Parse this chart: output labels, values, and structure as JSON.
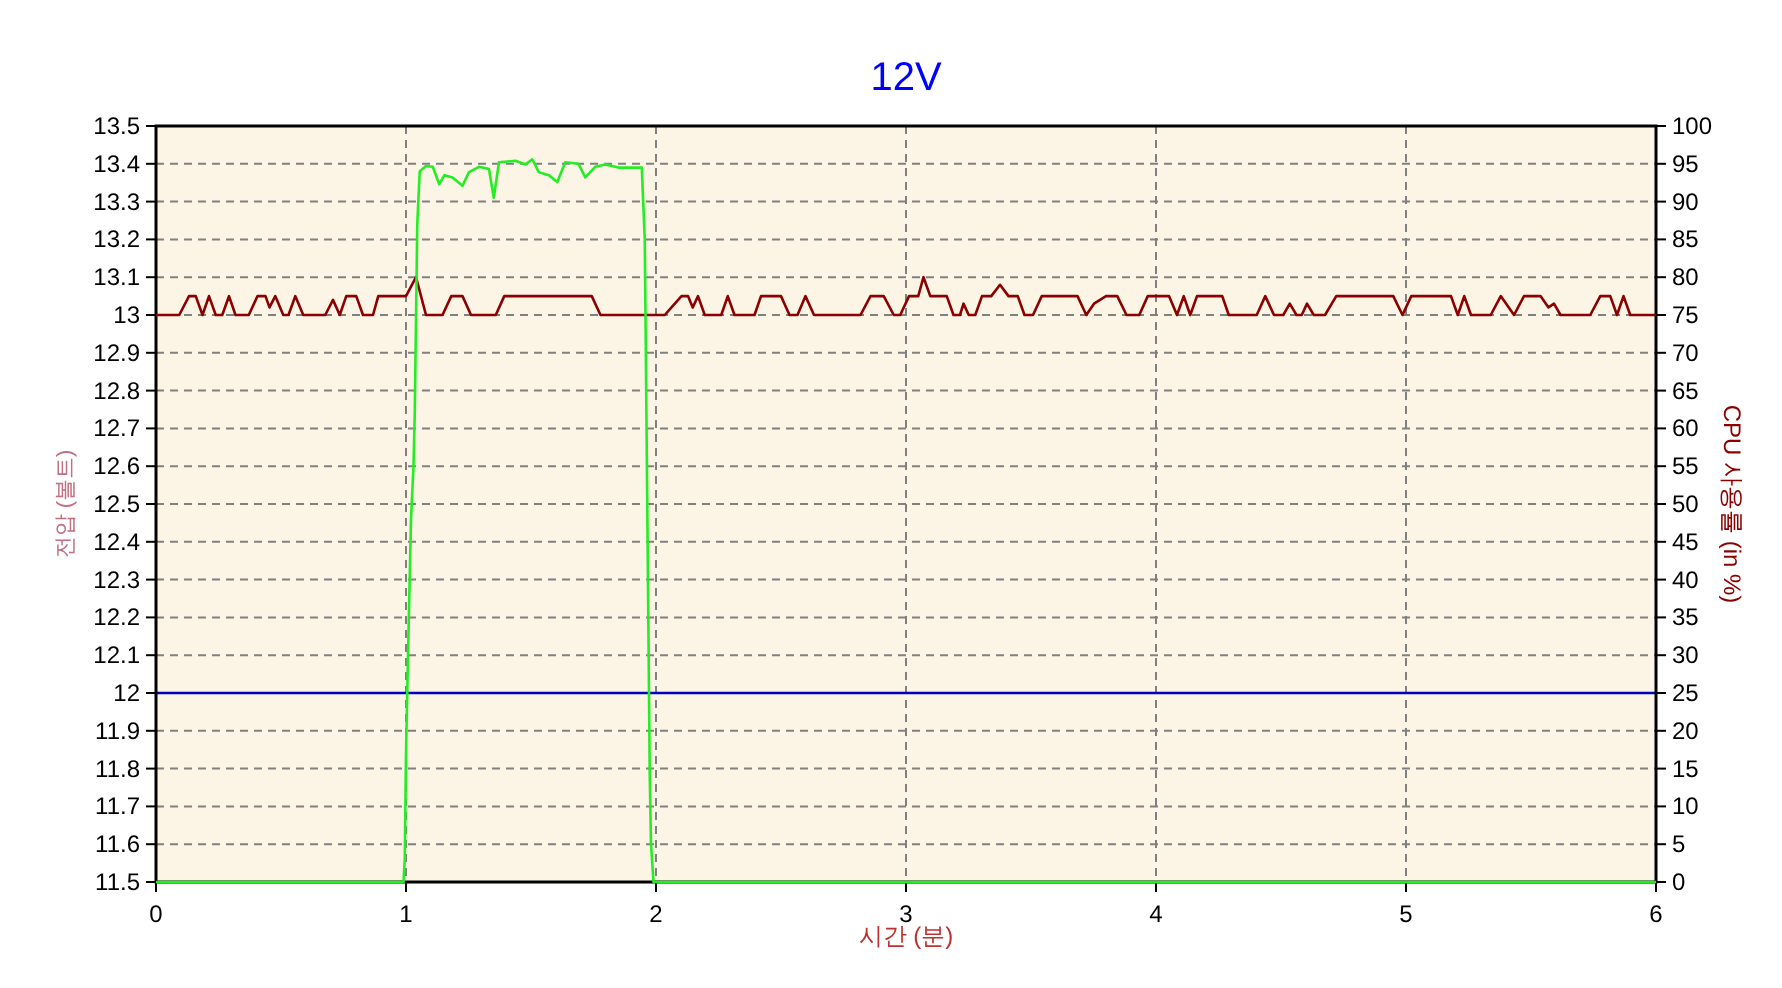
{
  "chart_data": {
    "type": "line",
    "title": "12V",
    "xlabel": "시간 (분)",
    "ylabel": "전압 (볼트)",
    "y2label": "CPU 사용률 (in %)",
    "xlim": [
      0,
      6
    ],
    "xticks": [
      0,
      1,
      2,
      3,
      4,
      5,
      6
    ],
    "ylim": [
      11.5,
      13.5
    ],
    "yticks": [
      11.5,
      11.6,
      11.7,
      11.8,
      11.9,
      12,
      12.1,
      12.2,
      12.3,
      12.4,
      12.5,
      12.6,
      12.7,
      12.8,
      12.9,
      13,
      13.1,
      13.2,
      13.3,
      13.4,
      13.5
    ],
    "y2lim": [
      0,
      100
    ],
    "y2ticks": [
      0,
      5,
      10,
      15,
      20,
      25,
      30,
      35,
      40,
      45,
      50,
      55,
      60,
      65,
      70,
      75,
      80,
      85,
      90,
      95,
      100
    ],
    "grid": true,
    "ref_lines": [
      {
        "axis": "y",
        "value": 12,
        "color": "#0000c0"
      }
    ],
    "series": [
      {
        "color": "#8b0000",
        "x": [
          0,
          0.093,
          0.132,
          0.159,
          0.186,
          0.212,
          0.239,
          0.265,
          0.292,
          0.318,
          0.371,
          0.406,
          0.438,
          0.454,
          0.477,
          0.509,
          0.53,
          0.557,
          0.589,
          0.677,
          0.708,
          0.735,
          0.761,
          0.801,
          0.828,
          0.868,
          0.889,
          1.0,
          1.04,
          1.08,
          1.146,
          1.181,
          1.226,
          1.26,
          1.359,
          1.393,
          1.743,
          1.778,
          2.035,
          2.062,
          2.102,
          2.128,
          2.147,
          2.168,
          2.195,
          2.261,
          2.287,
          2.314,
          2.394,
          2.42,
          2.5,
          2.534,
          2.566,
          2.598,
          2.632,
          2.818,
          2.858,
          2.911,
          2.951,
          2.977,
          3.012,
          3.049,
          3.07,
          3.097,
          3.163,
          3.19,
          3.216,
          3.23,
          3.251,
          3.277,
          3.304,
          3.341,
          3.376,
          3.41,
          3.447,
          3.474,
          3.508,
          3.543,
          3.686,
          3.721,
          3.752,
          3.8,
          3.845,
          3.882,
          3.933,
          3.967,
          4.052,
          4.084,
          4.111,
          4.137,
          4.164,
          4.265,
          4.291,
          4.403,
          4.437,
          4.472,
          4.509,
          4.535,
          4.562,
          4.583,
          4.604,
          4.631,
          4.676,
          4.721,
          4.949,
          4.986,
          5.021,
          5.18,
          5.207,
          5.233,
          5.26,
          5.339,
          5.379,
          5.432,
          5.472,
          5.538,
          5.57,
          5.592,
          5.618,
          5.737,
          5.777,
          5.817,
          5.844,
          5.87,
          5.897,
          6
        ],
        "values": [
          13.0,
          13.0,
          13.05,
          13.05,
          13.0,
          13.05,
          13.0,
          13.0,
          13.05,
          13.0,
          13.0,
          13.05,
          13.05,
          13.02,
          13.05,
          13.0,
          13.0,
          13.05,
          13.0,
          13.0,
          13.04,
          13.0,
          13.05,
          13.05,
          13.0,
          13.0,
          13.05,
          13.05,
          13.1,
          13.0,
          13.0,
          13.05,
          13.05,
          13.0,
          13.0,
          13.05,
          13.05,
          13.0,
          13.0,
          13.02,
          13.05,
          13.05,
          13.02,
          13.05,
          13.0,
          13.0,
          13.05,
          13.0,
          13.0,
          13.05,
          13.05,
          13.0,
          13.0,
          13.05,
          13.0,
          13.0,
          13.05,
          13.05,
          13.0,
          13.0,
          13.05,
          13.05,
          13.1,
          13.05,
          13.05,
          13.0,
          13.0,
          13.03,
          13.0,
          13.0,
          13.05,
          13.05,
          13.08,
          13.05,
          13.05,
          13.0,
          13.0,
          13.05,
          13.05,
          13.0,
          13.03,
          13.05,
          13.05,
          13.0,
          13.0,
          13.05,
          13.05,
          13.0,
          13.05,
          13.0,
          13.05,
          13.05,
          13.0,
          13.0,
          13.05,
          13.0,
          13.0,
          13.03,
          13.0,
          13.0,
          13.03,
          13.0,
          13.0,
          13.05,
          13.05,
          13.0,
          13.05,
          13.05,
          13.0,
          13.05,
          13.0,
          13.0,
          13.05,
          13.0,
          13.05,
          13.05,
          13.02,
          13.03,
          13.0,
          13.0,
          13.05,
          13.05,
          13.0,
          13.05,
          13.0,
          13.0
        ]
      },
      {
        "color": "#22ee22",
        "axis": "y2",
        "x": [
          0,
          0.99,
          0.995,
          1.0,
          1.01,
          1.02,
          1.03,
          1.035,
          1.045,
          1.055,
          1.08,
          1.107,
          1.133,
          1.154,
          1.186,
          1.226,
          1.252,
          1.292,
          1.332,
          1.351,
          1.372,
          1.438,
          1.478,
          1.505,
          1.531,
          1.571,
          1.605,
          1.637,
          1.69,
          1.717,
          1.757,
          1.797,
          1.85,
          1.943,
          1.955,
          1.965,
          1.975,
          1.98,
          1.99,
          6
        ],
        "values": [
          0,
          0,
          3,
          17,
          33,
          48,
          55,
          62,
          87,
          94,
          94.7,
          94.6,
          92.3,
          93.5,
          93.2,
          92.1,
          93.9,
          94.6,
          94.3,
          90.5,
          95.2,
          95.4,
          94.9,
          95.6,
          93.9,
          93.5,
          92.6,
          95.2,
          95.0,
          93.2,
          94.6,
          94.9,
          94.5,
          94.5,
          85,
          50,
          14,
          5,
          0,
          0
        ]
      }
    ]
  }
}
